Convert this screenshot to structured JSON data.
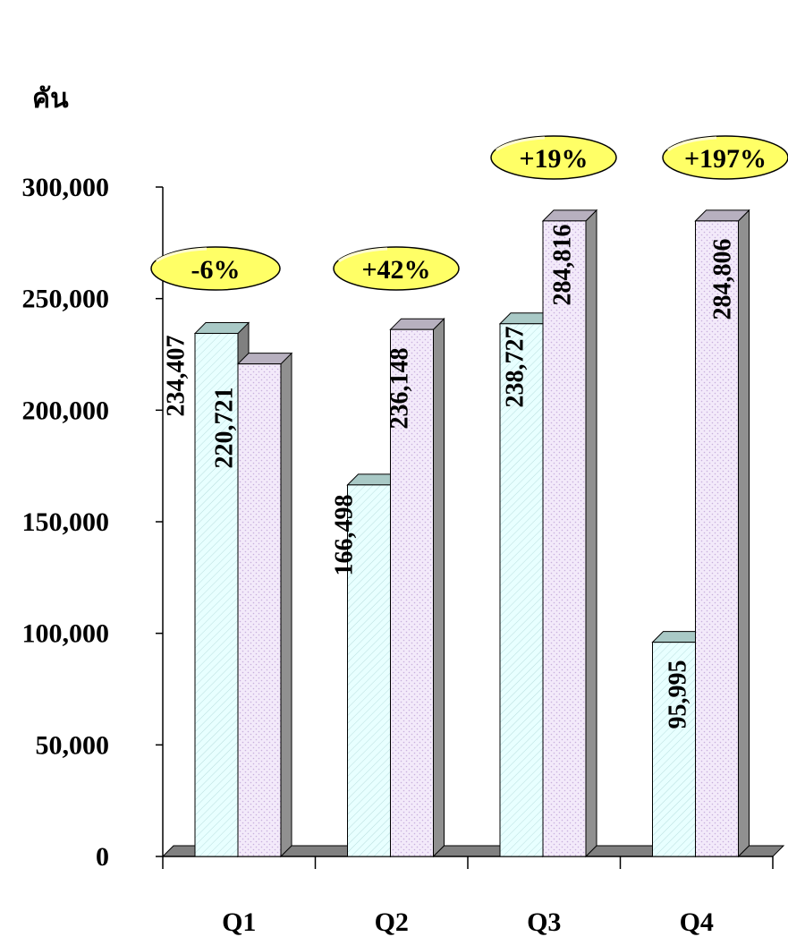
{
  "chart_data": {
    "type": "bar",
    "unit_label": "คัน",
    "categories": [
      "Q1",
      "Q2",
      "Q3",
      "Q4"
    ],
    "series": [
      {
        "values": [
          234407,
          166498,
          238727,
          95995
        ],
        "color": "#e8ffff"
      },
      {
        "values": [
          220721,
          236148,
          284816,
          284806
        ],
        "color": "#f0e4f8"
      }
    ],
    "value_labels": [
      [
        "234,407",
        "220,721"
      ],
      [
        "166,498",
        "236,148"
      ],
      [
        "238,727",
        "284,816"
      ],
      [
        "95,995",
        "284,806"
      ]
    ],
    "change_labels": [
      "-6%",
      "+42%",
      "+19%",
      "+197%"
    ],
    "yticks": [
      "0",
      "50,000",
      "100,000",
      "150,000",
      "200,000",
      "250,000",
      "300,000"
    ],
    "ylim": [
      0,
      300000
    ],
    "badge_color": "#ffff66",
    "three_d": true
  }
}
